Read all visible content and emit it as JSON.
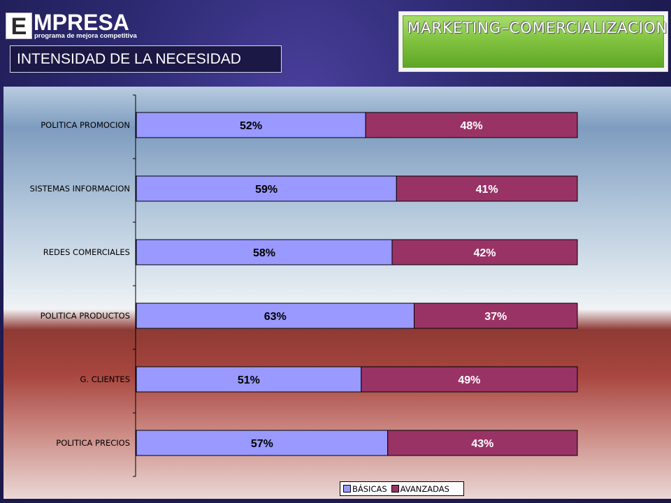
{
  "logo": {
    "letter": "E",
    "word": "MPRESA",
    "tagline": "programa de mejora competitiva"
  },
  "subtitle": "INTENSIDAD DE LA NECESIDAD",
  "section_title": "MARKETING–COMERCIALIZACION",
  "colors": {
    "basicas": "#9999ff",
    "avanzadas": "#993366"
  },
  "chart_data": {
    "type": "bar",
    "orientation": "horizontal",
    "stacked": "percent",
    "categories": [
      "POLITICA PROMOCION",
      "SISTEMAS INFORMACION",
      "REDES COMERCIALES",
      "POLITICA PRODUCTOS",
      "G. CLIENTES",
      "POLITICA PRECIOS"
    ],
    "series": [
      {
        "name": "BÁSICAS",
        "values": [
          52,
          59,
          58,
          63,
          51,
          57
        ],
        "labels": [
          "52%",
          "59%",
          "58%",
          "63%",
          "51%",
          "57%"
        ]
      },
      {
        "name": "AVANZADAS",
        "values": [
          48,
          41,
          42,
          37,
          49,
          43
        ],
        "labels": [
          "48%",
          "41%",
          "42%",
          "37%",
          "49%",
          "43%"
        ]
      }
    ],
    "xlim": [
      0,
      100
    ],
    "grid": false,
    "legend": "bottom"
  }
}
